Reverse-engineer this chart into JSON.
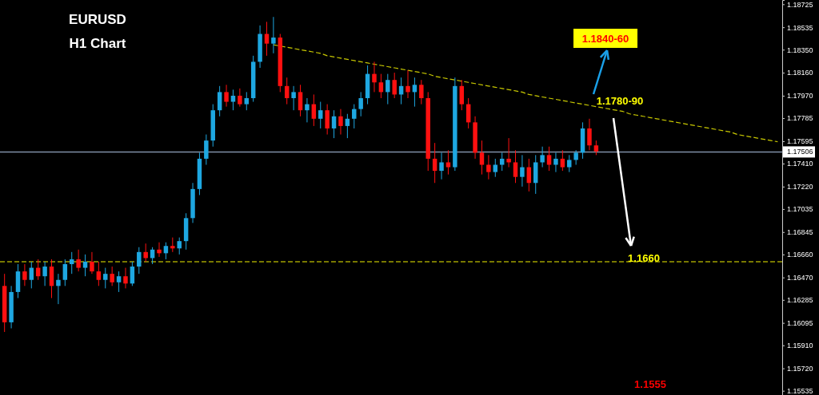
{
  "chart_data": {
    "type": "candlestick",
    "title": "EURUSD",
    "subtitle": "H1 Chart",
    "categories": [
      null,
      null,
      null,
      null,
      null,
      null,
      null,
      null,
      null,
      null,
      null,
      null,
      null,
      null,
      null,
      null,
      null,
      null,
      null,
      null,
      null,
      null,
      null,
      null,
      null,
      null,
      null,
      null,
      null,
      null,
      null,
      null,
      null,
      null,
      null,
      null,
      null,
      null,
      null,
      null,
      null,
      null,
      null,
      null,
      null,
      null,
      null,
      null,
      null,
      null,
      null,
      null,
      null,
      null,
      null,
      null,
      null,
      null,
      null,
      null,
      null,
      null,
      null,
      null,
      null,
      null,
      null,
      null,
      null,
      null,
      null,
      null,
      null,
      null,
      null,
      null,
      null,
      null,
      null,
      null,
      null,
      null,
      null,
      null,
      null,
      null,
      null,
      null,
      null,
      null,
      null,
      null,
      null,
      null,
      null,
      null,
      null,
      null,
      null,
      null,
      null,
      null,
      null,
      null,
      null,
      null,
      null,
      null,
      null,
      null,
      null,
      null,
      null,
      null,
      null,
      null
    ],
    "ohlc": [
      [
        1.164,
        1.165,
        1.1602,
        1.161
      ],
      [
        1.161,
        1.164,
        1.1605,
        1.1635
      ],
      [
        1.1635,
        1.1658,
        1.163,
        1.1652
      ],
      [
        1.1652,
        1.1658,
        1.164,
        1.1645
      ],
      [
        1.1645,
        1.166,
        1.1638,
        1.1655
      ],
      [
        1.1655,
        1.1662,
        1.1645,
        1.1648
      ],
      [
        1.1648,
        1.166,
        1.164,
        1.1656
      ],
      [
        1.1656,
        1.1662,
        1.163,
        1.164
      ],
      [
        1.164,
        1.165,
        1.1625,
        1.1645
      ],
      [
        1.1645,
        1.1662,
        1.164,
        1.1658
      ],
      [
        1.1658,
        1.1668,
        1.165,
        1.1662
      ],
      [
        1.1662,
        1.167,
        1.1652,
        1.1655
      ],
      [
        1.1655,
        1.1666,
        1.1648,
        1.166
      ],
      [
        1.166,
        1.1668,
        1.165,
        1.1652
      ],
      [
        1.1652,
        1.166,
        1.164,
        1.1645
      ],
      [
        1.1645,
        1.1655,
        1.1638,
        1.165
      ],
      [
        1.165,
        1.1656,
        1.164,
        1.1643
      ],
      [
        1.1643,
        1.1652,
        1.1635,
        1.1648
      ],
      [
        1.1648,
        1.1655,
        1.1638,
        1.1642
      ],
      [
        1.1642,
        1.166,
        1.164,
        1.1656
      ],
      [
        1.1656,
        1.1672,
        1.165,
        1.1668
      ],
      [
        1.1668,
        1.1675,
        1.166,
        1.1663
      ],
      [
        1.1663,
        1.1672,
        1.1658,
        1.167
      ],
      [
        1.167,
        1.1676,
        1.1664,
        1.1667
      ],
      [
        1.1667,
        1.1676,
        1.1662,
        1.1673
      ],
      [
        1.1673,
        1.168,
        1.1668,
        1.1671
      ],
      [
        1.1671,
        1.168,
        1.1666,
        1.1677
      ],
      [
        1.1677,
        1.17,
        1.167,
        1.1696
      ],
      [
        1.1696,
        1.1725,
        1.1692,
        1.172
      ],
      [
        1.172,
        1.175,
        1.1715,
        1.1745
      ],
      [
        1.1745,
        1.1765,
        1.174,
        1.176
      ],
      [
        1.176,
        1.179,
        1.1755,
        1.1785
      ],
      [
        1.1785,
        1.1805,
        1.178,
        1.18
      ],
      [
        1.18,
        1.1806,
        1.1788,
        1.1792
      ],
      [
        1.1792,
        1.1802,
        1.1785,
        1.1797
      ],
      [
        1.1797,
        1.1803,
        1.1788,
        1.179
      ],
      [
        1.179,
        1.18,
        1.1785,
        1.1795
      ],
      [
        1.1795,
        1.183,
        1.1792,
        1.1825
      ],
      [
        1.1825,
        1.1855,
        1.182,
        1.1848
      ],
      [
        1.1848,
        1.1858,
        1.183,
        1.184
      ],
      [
        1.184,
        1.1862,
        1.1832,
        1.1845
      ],
      [
        1.1845,
        1.1848,
        1.18,
        1.1805
      ],
      [
        1.1805,
        1.1812,
        1.179,
        1.1795
      ],
      [
        1.1795,
        1.1805,
        1.1785,
        1.18
      ],
      [
        1.18,
        1.1806,
        1.178,
        1.1785
      ],
      [
        1.1785,
        1.1795,
        1.1775,
        1.179
      ],
      [
        1.179,
        1.1798,
        1.1772,
        1.1778
      ],
      [
        1.1778,
        1.1792,
        1.177,
        1.1785
      ],
      [
        1.1785,
        1.179,
        1.1765,
        1.177
      ],
      [
        1.177,
        1.1785,
        1.1762,
        1.178
      ],
      [
        1.178,
        1.1786,
        1.1765,
        1.1772
      ],
      [
        1.1772,
        1.1782,
        1.1762,
        1.1778
      ],
      [
        1.1778,
        1.179,
        1.177,
        1.1786
      ],
      [
        1.1786,
        1.18,
        1.178,
        1.1795
      ],
      [
        1.1795,
        1.1822,
        1.179,
        1.1815
      ],
      [
        1.1815,
        1.1825,
        1.18,
        1.1808
      ],
      [
        1.1808,
        1.1815,
        1.1795,
        1.18
      ],
      [
        1.18,
        1.1815,
        1.179,
        1.181
      ],
      [
        1.181,
        1.1816,
        1.1795,
        1.1798
      ],
      [
        1.1798,
        1.1812,
        1.179,
        1.1805
      ],
      [
        1.1805,
        1.1818,
        1.1795,
        1.18
      ],
      [
        1.18,
        1.1812,
        1.1788,
        1.1806
      ],
      [
        1.1806,
        1.181,
        1.179,
        1.1795
      ],
      [
        1.1795,
        1.18,
        1.1735,
        1.1745
      ],
      [
        1.1745,
        1.1758,
        1.1725,
        1.1735
      ],
      [
        1.1735,
        1.175,
        1.1728,
        1.1742
      ],
      [
        1.1742,
        1.1752,
        1.1732,
        1.1738
      ],
      [
        1.1738,
        1.1812,
        1.1735,
        1.1805
      ],
      [
        1.1805,
        1.181,
        1.1785,
        1.179
      ],
      [
        1.179,
        1.1795,
        1.177,
        1.1775
      ],
      [
        1.1775,
        1.178,
        1.1745,
        1.175
      ],
      [
        1.175,
        1.176,
        1.1732,
        1.174
      ],
      [
        1.174,
        1.1748,
        1.1728,
        1.1734
      ],
      [
        1.1734,
        1.1745,
        1.173,
        1.174
      ],
      [
        1.174,
        1.175,
        1.1735,
        1.1745
      ],
      [
        1.1745,
        1.1762,
        1.1738,
        1.1742
      ],
      [
        1.1742,
        1.1752,
        1.1725,
        1.173
      ],
      [
        1.173,
        1.1748,
        1.1722,
        1.1738
      ],
      [
        1.1738,
        1.1745,
        1.1718,
        1.1725
      ],
      [
        1.1725,
        1.1748,
        1.1716,
        1.1742
      ],
      [
        1.1742,
        1.1755,
        1.1738,
        1.1748
      ],
      [
        1.1748,
        1.1755,
        1.1735,
        1.174
      ],
      [
        1.174,
        1.175,
        1.1734,
        1.1745
      ],
      [
        1.1745,
        1.1752,
        1.1735,
        1.1738
      ],
      [
        1.1738,
        1.1748,
        1.1734,
        1.1744
      ],
      [
        1.1744,
        1.1752,
        1.174,
        1.175
      ],
      [
        1.175,
        1.1775,
        1.1745,
        1.177
      ],
      [
        1.177,
        1.1778,
        1.1752,
        1.1756
      ],
      [
        1.1756,
        1.176,
        1.1748,
        1.1751
      ],
      null,
      null,
      null,
      null,
      null,
      null,
      null,
      null,
      null,
      null,
      null,
      null,
      null,
      null,
      null,
      null,
      null,
      null,
      null,
      null,
      null,
      null,
      null,
      null,
      null,
      null,
      null
    ],
    "series": [
      {
        "type": "line",
        "color": "#c8c800",
        "line_style": "dashed",
        "values": [
          null,
          null,
          null,
          null,
          null,
          null,
          null,
          null,
          null,
          null,
          null,
          null,
          null,
          null,
          null,
          null,
          null,
          null,
          null,
          null,
          null,
          null,
          null,
          null,
          null,
          null,
          null,
          null,
          null,
          null,
          null,
          null,
          null,
          null,
          null,
          null,
          null,
          null,
          null,
          null,
          1.1839,
          1.1838,
          1.1837,
          1.1836,
          1.1835,
          1.1834,
          1.1833,
          1.1832,
          1.183,
          1.1829,
          1.1828,
          1.1827,
          1.1826,
          1.1825,
          1.1824,
          1.1823,
          1.1822,
          1.1821,
          1.182,
          1.1819,
          1.1818,
          1.1817,
          1.1816,
          1.1815,
          1.1813,
          1.1812,
          1.1811,
          1.181,
          1.1809,
          1.1808,
          1.1807,
          1.1806,
          1.1805,
          1.1804,
          1.1803,
          1.1802,
          1.1801,
          1.18,
          1.1798,
          1.1797,
          1.1796,
          1.1795,
          1.1794,
          1.1793,
          1.1792,
          1.1791,
          1.179,
          1.1789,
          1.1788,
          1.1787,
          1.1786,
          1.1785,
          1.1784,
          1.1782,
          1.1781,
          1.178,
          1.1779,
          1.1778,
          1.1777,
          1.1776,
          1.1775,
          1.1774,
          1.1773,
          1.1772,
          1.1771,
          1.177,
          1.1769,
          1.1768,
          1.1767,
          1.1765,
          1.1764,
          1.1763,
          1.1762,
          1.1761,
          1.176,
          1.1759
        ]
      }
    ],
    "ylim": [
      1.155,
      1.1876
    ],
    "yticks": [
      1.18725,
      1.18535,
      {
        "value": 1.1835,
        "label": "1.18350"
      },
      {
        "value": 1.1816,
        "label": "1.18160"
      },
      {
        "value": 1.1797,
        "label": "1.17970"
      },
      1.17785,
      1.17595,
      {
        "value": 1.1741,
        "label": "1.17410"
      },
      {
        "value": 1.1722,
        "label": "1.17220"
      },
      1.17035,
      1.16845,
      {
        "value": 1.1666,
        "label": "1.16660"
      },
      {
        "value": 1.1647,
        "label": "1.16470"
      },
      1.16285,
      1.16095,
      {
        "value": 1.1591,
        "label": "1.15910"
      },
      {
        "value": 1.1572,
        "label": "1.15720"
      },
      1.15535
    ],
    "tick_labels": "y",
    "grid": false,
    "ref_lines": [
      {
        "axis": "y",
        "value": 1.166,
        "color": "#a0a000",
        "line_style": "dashed"
      },
      {
        "axis": "y",
        "value": 1.17506,
        "label": "1.17506",
        "color": "#7f8fa6",
        "line_style": "solid"
      }
    ],
    "annotations": [
      "1.1840-60",
      "1.1780-90",
      "1.1660",
      "1.1555"
    ]
  }
}
